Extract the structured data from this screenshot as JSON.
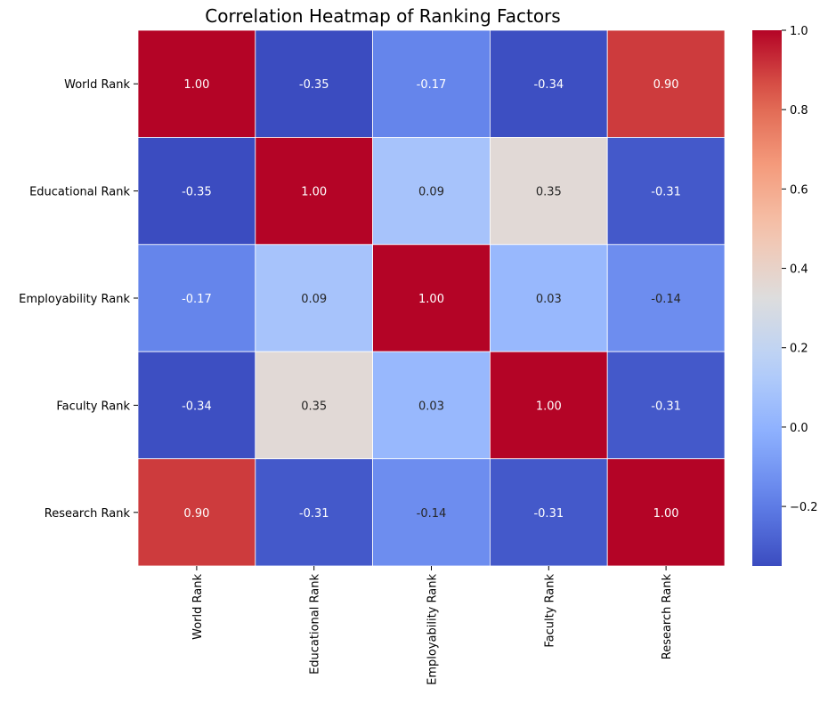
{
  "chart_data": {
    "type": "heatmap",
    "title": "Correlation Heatmap of Ranking Factors",
    "xlabel": "",
    "ylabel": "",
    "x_categories": [
      "World Rank",
      "Educational Rank",
      "Employability Rank",
      "Faculty Rank",
      "Research Rank"
    ],
    "y_categories": [
      "World Rank",
      "Educational Rank",
      "Employability Rank",
      "Faculty Rank",
      "Research Rank"
    ],
    "values": [
      [
        1.0,
        -0.35,
        -0.17,
        -0.34,
        0.9
      ],
      [
        -0.35,
        1.0,
        0.09,
        0.35,
        -0.31
      ],
      [
        -0.17,
        0.09,
        1.0,
        0.03,
        -0.14
      ],
      [
        -0.34,
        0.35,
        0.03,
        1.0,
        -0.31
      ],
      [
        0.9,
        -0.31,
        -0.14,
        -0.31,
        1.0
      ]
    ],
    "value_format": "2f",
    "colormap": "coolwarm",
    "colorbar_range": [
      -0.35,
      1.0
    ],
    "colorbar_ticks": [
      1.0,
      0.8,
      0.6,
      0.4,
      0.2,
      0.0,
      -0.2
    ],
    "colorbar_tick_labels": [
      "1.0",
      "0.8",
      "0.6",
      "0.4",
      "0.2",
      "0.0",
      "−0.2"
    ],
    "grid": false,
    "cell_border_color": "#ffffff",
    "legend_placement": "right"
  }
}
